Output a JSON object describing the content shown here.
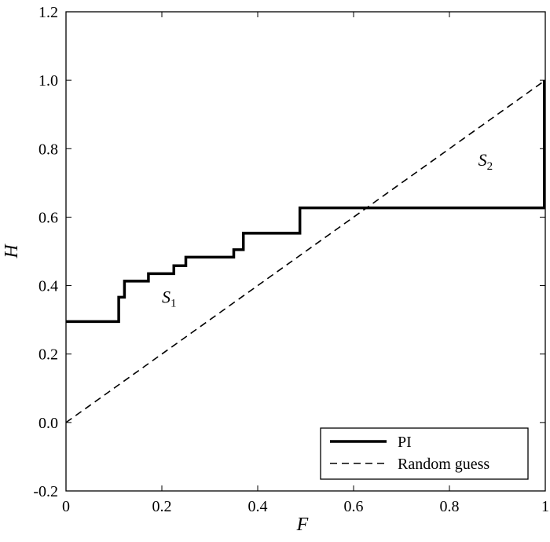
{
  "chart_data": {
    "type": "line",
    "xlabel": "F",
    "ylabel": "H",
    "xlim": [
      0,
      1
    ],
    "ylim": [
      -0.2,
      1.2
    ],
    "xticks": [
      0,
      0.2,
      0.4,
      0.6,
      0.8,
      1
    ],
    "xtick_labels": [
      "0",
      "0.2",
      "0.4",
      "0.6",
      "0.8",
      "1"
    ],
    "yticks": [
      -0.2,
      0,
      0.2,
      0.4,
      0.6,
      0.8,
      1.0,
      1.2
    ],
    "ytick_labels": [
      "-0.2",
      "0.0",
      "0.2",
      "0.4",
      "0.6",
      "0.8",
      "1.0",
      "1.2"
    ],
    "grid": false,
    "legend_position": "bottom-right",
    "series": [
      {
        "name": "PI",
        "style": "solid",
        "color": "#000000",
        "x": [
          0,
          0.11,
          0.11,
          0.122,
          0.122,
          0.172,
          0.172,
          0.225,
          0.225,
          0.25,
          0.25,
          0.35,
          0.35,
          0.37,
          0.37,
          0.488,
          0.488,
          0.998,
          0.998
        ],
        "y": [
          0.295,
          0.295,
          0.366,
          0.366,
          0.413,
          0.413,
          0.435,
          0.435,
          0.458,
          0.458,
          0.483,
          0.483,
          0.505,
          0.505,
          0.553,
          0.553,
          0.627,
          0.627,
          1.0
        ]
      },
      {
        "name": "Random guess",
        "style": "dashed",
        "color": "#000000",
        "x": [
          0,
          1
        ],
        "y": [
          0,
          1
        ]
      }
    ],
    "annotations": [
      {
        "label": "S",
        "sub": "1",
        "x": 0.2,
        "y": 0.35
      },
      {
        "label": "S",
        "sub": "2",
        "x": 0.86,
        "y": 0.75
      }
    ]
  }
}
